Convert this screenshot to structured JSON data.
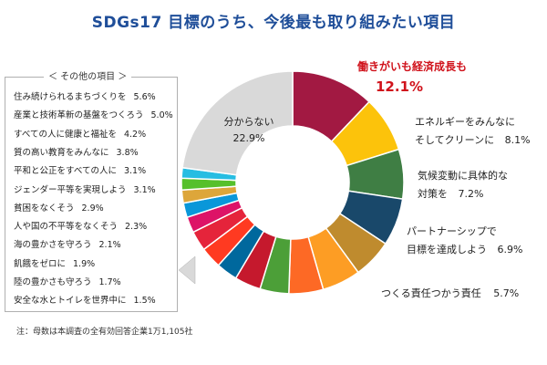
{
  "chart_data": {
    "type": "pie",
    "title": "SDGs17 目標のうち、今後最も取り組みたい項目",
    "categories": [
      "働きがいも経済成長も",
      "エネルギーをみんなにそしてクリーンに",
      "気候変動に具体的な対策を",
      "パートナーシップで目標を達成しよう",
      "つくる責任つかう責任",
      "住み続けられるまちづくりを",
      "産業と技術革新の基盤をつくろう",
      "すべての人に健康と福祉を",
      "質の高い教育をみんなに",
      "平和と公正をすべての人に",
      "ジェンダー平等を実現しよう",
      "貧困をなくそう",
      "人や国の不平等をなくそう",
      "海の豊かさを守ろう",
      "飢餓をゼロに",
      "陸の豊かさも守ろう",
      "安全な水とトイレを世界中に",
      "分からない"
    ],
    "values": [
      12.1,
      8.1,
      7.2,
      6.9,
      5.7,
      5.6,
      5.0,
      4.2,
      3.8,
      3.1,
      3.1,
      2.9,
      2.3,
      2.1,
      1.9,
      1.7,
      1.5,
      22.9
    ],
    "colors": [
      "#a21942",
      "#fcc30b",
      "#3f7e44",
      "#19486a",
      "#bf8b2e",
      "#fd9d24",
      "#fd6925",
      "#4c9f38",
      "#c5192d",
      "#00689d",
      "#ff3a21",
      "#e5243b",
      "#dd1367",
      "#0a97d9",
      "#dda63a",
      "#56c02b",
      "#26bde2",
      "#d9d9d9"
    ],
    "donut": true,
    "legend": "none"
  },
  "labels": {
    "top1": {
      "name": "働きがいも経済成長も",
      "value": "12.1%"
    },
    "top2": {
      "line1": "エネルギーをみんなに",
      "line2": "そしてクリーンに",
      "value": "8.1%"
    },
    "top3": {
      "line1": "気候変動に具体的な",
      "line2": "対策を",
      "value": "7.2%"
    },
    "top4": {
      "line1": "パートナーシップで",
      "line2": "目標を達成しよう",
      "value": "6.9%"
    },
    "top5": {
      "name": "つくる責任つかう責任",
      "value": "5.7%"
    },
    "unknown": {
      "name": "分からない",
      "value": "22.9%"
    }
  },
  "others": {
    "title": "＜ その他の項目 ＞",
    "items": [
      {
        "name": "住み続けられるまちづくりを",
        "value": "5.6%"
      },
      {
        "name": "産業と技術革新の基盤をつくろう",
        "value": "5.0%"
      },
      {
        "name": "すべての人に健康と福祉を",
        "value": "4.2%"
      },
      {
        "name": "質の高い教育をみんなに",
        "value": "3.8%"
      },
      {
        "name": "平和と公正をすべての人に",
        "value": "3.1%"
      },
      {
        "name": "ジェンダー平等を実現しよう",
        "value": "3.1%"
      },
      {
        "name": "貧困をなくそう",
        "value": "2.9%"
      },
      {
        "name": "人や国の不平等をなくそう",
        "value": "2.3%"
      },
      {
        "name": "海の豊かさを守ろう",
        "value": "2.1%"
      },
      {
        "name": "飢餓をゼロに",
        "value": "1.9%"
      },
      {
        "name": "陸の豊かさも守ろう",
        "value": "1.7%"
      },
      {
        "name": "安全な水とトイレを世界中に",
        "value": "1.5%"
      }
    ]
  },
  "note": "注：母数は本調査の全有効回答企業1万1,105社"
}
